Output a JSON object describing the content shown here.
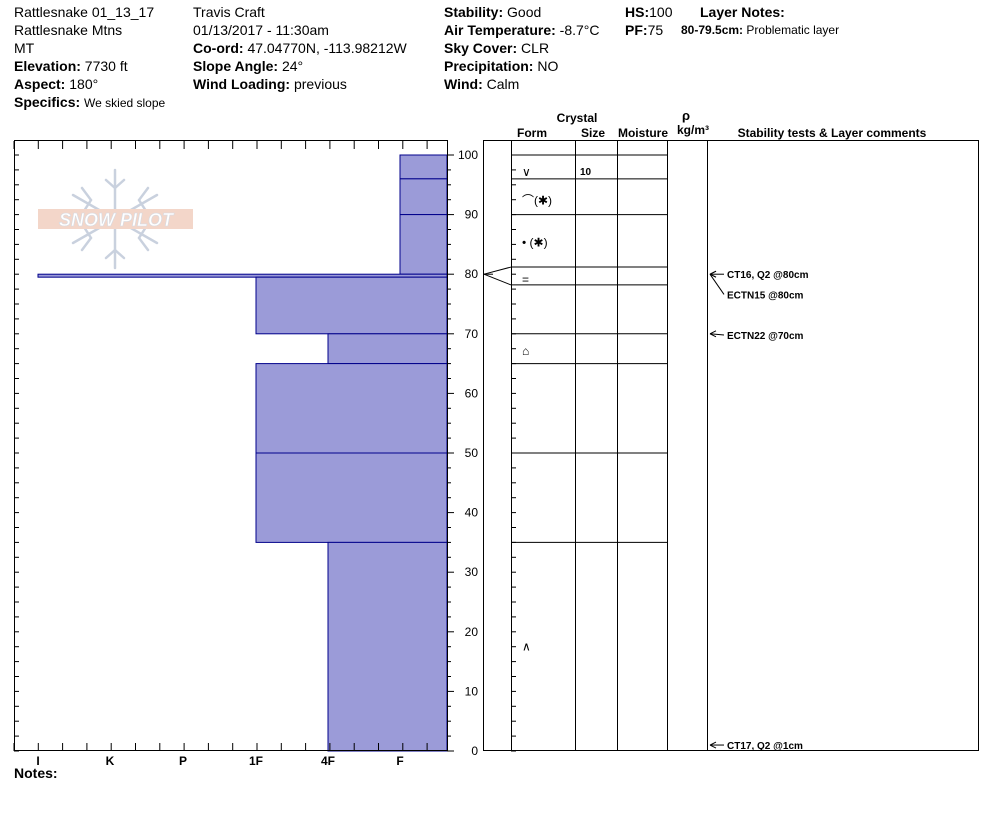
{
  "header": {
    "col1": {
      "pit_name": "Rattlesnake 01_13_17",
      "range": "Rattlesnake Mtns",
      "state": "MT",
      "elevation_label": "Elevation:",
      "elevation": "7730 ft",
      "aspect_label": "Aspect:",
      "aspect": "180°",
      "specifics_label": "Specifics:",
      "specifics": "We skied slope"
    },
    "col2": {
      "observer": "Travis  Craft",
      "datetime": "01/13/2017 - 11:30am",
      "coord_label": "Co-ord:",
      "coord": "47.04770N, -113.98212W",
      "slope_label": "Slope Angle:",
      "slope": "24°",
      "wind_loading_label": "Wind Loading:",
      "wind_loading": "previous"
    },
    "col3": {
      "stability_label": "Stability:",
      "stability": "Good",
      "air_temp_label": "Air Temperature:",
      "air_temp": "-8.7°C",
      "sky_label": "Sky Cover:",
      "sky": "CLR",
      "precip_label": "Precipitation:",
      "precip": "NO",
      "wind_label": "Wind:",
      "wind": "Calm"
    },
    "col4": {
      "hs_label": "HS:",
      "hs": "100",
      "pf_label": "PF:",
      "pf": "75"
    },
    "col5": {
      "layer_notes_label": "Layer Notes:",
      "layer_note_range": "80-79.5cm:",
      "layer_note_text": "Problematic layer"
    }
  },
  "table_headers": {
    "crystal": "Crystal",
    "form": "Form",
    "size": "Size",
    "moisture": "Moisture",
    "rho": "ρ",
    "density_unit": "kg/m³",
    "stability_comments": "Stability tests & Layer comments"
  },
  "footer": {
    "notes_label": "Notes:"
  },
  "logo_text": "SNOW PILOT",
  "colors": {
    "hardness_fill": "#9b9bd8",
    "hardness_line": "#00008b"
  },
  "chart_data": {
    "type": "snow-profile",
    "y_axis": {
      "min": 0,
      "max": 100,
      "ticks": [
        0,
        10,
        20,
        30,
        40,
        50,
        60,
        70,
        80,
        90,
        100
      ]
    },
    "hardness_scale": [
      "I",
      "K",
      "P",
      "1F",
      "4F",
      "F"
    ],
    "hardness_layers": [
      {
        "bottom": 96,
        "top": 100,
        "hardness": "F"
      },
      {
        "bottom": 90,
        "top": 96,
        "hardness": "F"
      },
      {
        "bottom": 80,
        "top": 90,
        "hardness": "F"
      },
      {
        "bottom": 79.5,
        "top": 80,
        "hardness": "I"
      },
      {
        "bottom": 70,
        "top": 79.5,
        "hardness": "1F"
      },
      {
        "bottom": 65,
        "top": 70,
        "hardness": "4F"
      },
      {
        "bottom": 50,
        "top": 65,
        "hardness": "1F"
      },
      {
        "bottom": 35,
        "top": 50,
        "hardness": "1F"
      },
      {
        "bottom": 0,
        "top": 35,
        "hardness": "4F"
      }
    ],
    "table_lines": [
      100,
      96,
      90,
      81.2,
      78.2,
      70,
      65,
      50,
      35
    ],
    "crystal_forms": [
      {
        "y": 97.3,
        "symbol": "∨"
      },
      {
        "y": 92.5,
        "symbol": "⌒(✱)"
      },
      {
        "y": 85.5,
        "symbol": "• (✱)"
      },
      {
        "y": 79.3,
        "symbol": "="
      },
      {
        "y": 67.3,
        "symbol": "⌂"
      },
      {
        "y": 17.7,
        "symbol": "∧"
      }
    ],
    "crystal_sizes": [
      {
        "y": 97.3,
        "size": "10"
      }
    ],
    "stability_tests": [
      {
        "y": 80,
        "label": "CT16, Q2 @80cm",
        "at": 80
      },
      {
        "y": 76.6,
        "label": "ECTN15 @80cm",
        "at": 80
      },
      {
        "y": 69.8,
        "label": "ECTN22 @70cm",
        "at": 70
      },
      {
        "y": 1,
        "label": "CT17, Q2 @1cm",
        "at": 1
      }
    ]
  }
}
